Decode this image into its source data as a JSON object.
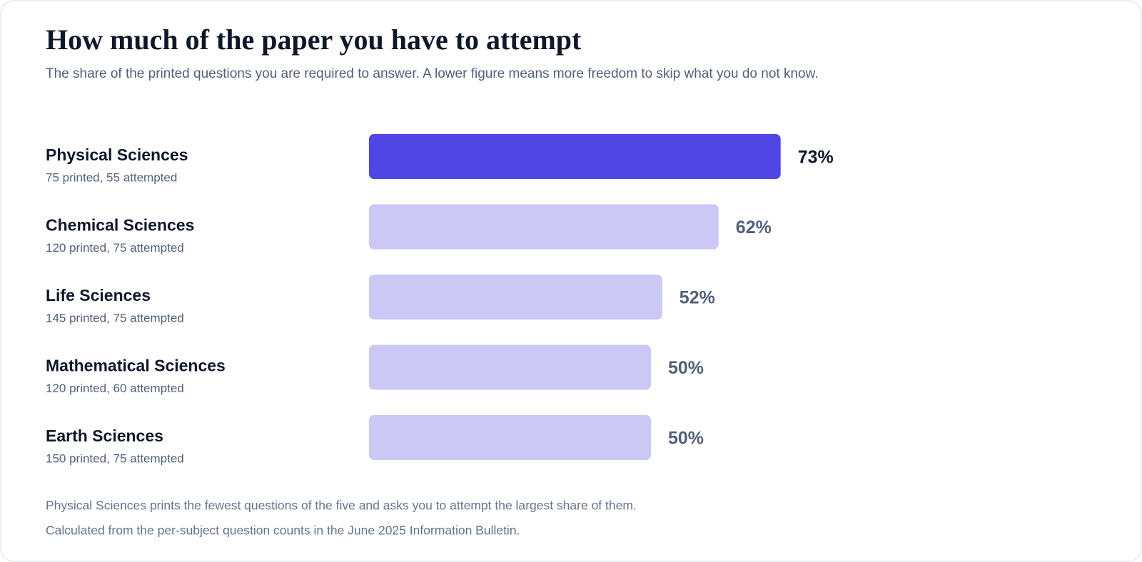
{
  "chart_data": {
    "type": "bar",
    "title": "How much of the paper you have to attempt",
    "subtitle": "The share of the printed questions you are required to answer. A lower figure means more freedom to skip what you do not know.",
    "categories": [
      "Physical Sciences",
      "Chemical Sciences",
      "Life Sciences",
      "Mathematical Sciences",
      "Earth Sciences"
    ],
    "category_notes": [
      "75 printed, 55 attempted",
      "120 printed, 75 attempted",
      "145 printed, 75 attempted",
      "120 printed, 60 attempted",
      "150 printed, 75 attempted"
    ],
    "values": [
      73,
      62,
      52,
      50,
      50
    ],
    "value_labels": [
      "73%",
      "62%",
      "52%",
      "50%",
      "50%"
    ],
    "color": "#cbc8f6",
    "highlight": "Physical Sciences",
    "highlight_color": "#5046e5",
    "notes": [
      "Physical Sciences prints the fewest questions of the five and asks you to attempt the largest share of them.",
      "Calculated from the per-subject question counts in the June 2025 Information Bulletin."
    ]
  }
}
